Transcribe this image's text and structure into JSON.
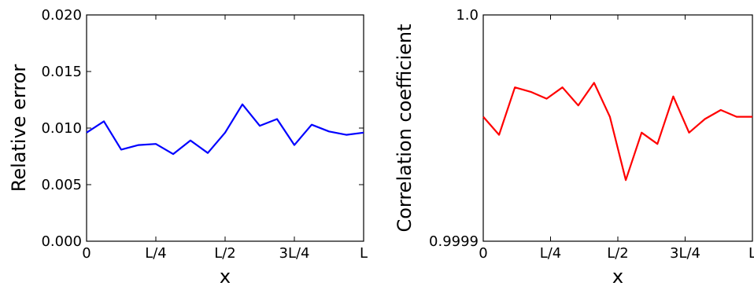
{
  "chart_data": [
    {
      "type": "line",
      "xlabel": "x",
      "ylabel": "Relative error",
      "xlim": [
        0,
        1
      ],
      "ylim": [
        0.0,
        0.02
      ],
      "x_ticks": [
        {
          "value": 0,
          "label": "0"
        },
        {
          "value": 0.25,
          "label": "L/4"
        },
        {
          "value": 0.5,
          "label": "L/2"
        },
        {
          "value": 0.75,
          "label": "3L/4"
        },
        {
          "value": 1,
          "label": "L"
        }
      ],
      "y_ticks": [
        {
          "value": 0.0,
          "label": "0.000"
        },
        {
          "value": 0.005,
          "label": "0.005"
        },
        {
          "value": 0.01,
          "label": "0.010"
        },
        {
          "value": 0.015,
          "label": "0.015"
        },
        {
          "value": 0.02,
          "label": "0.020"
        }
      ],
      "series": [
        {
          "color": "#0000ff",
          "x": [
            0,
            0.0625,
            0.125,
            0.1875,
            0.25,
            0.3125,
            0.375,
            0.4375,
            0.5,
            0.5625,
            0.625,
            0.6875,
            0.75,
            0.8125,
            0.875,
            0.9375,
            1
          ],
          "y": [
            0.0096,
            0.0106,
            0.0081,
            0.0085,
            0.0086,
            0.0077,
            0.0089,
            0.0078,
            0.0096,
            0.0121,
            0.0102,
            0.0108,
            0.0085,
            0.0103,
            0.0097,
            0.0094,
            0.0096
          ]
        }
      ]
    },
    {
      "type": "line",
      "xlabel": "x",
      "ylabel": "Correlation coefficient",
      "xlim": [
        0,
        1
      ],
      "ylim": [
        0.9999,
        1.0
      ],
      "x_ticks": [
        {
          "value": 0,
          "label": "0"
        },
        {
          "value": 0.25,
          "label": "L/4"
        },
        {
          "value": 0.5,
          "label": "L/2"
        },
        {
          "value": 0.75,
          "label": "3L/4"
        },
        {
          "value": 1,
          "label": "L"
        }
      ],
      "y_ticks": [
        {
          "value": 0.9999,
          "label": "0.9999"
        },
        {
          "value": 1.0,
          "label": "1.0"
        }
      ],
      "series": [
        {
          "color": "#ff0000",
          "x": [
            0,
            0.0588,
            0.1176,
            0.1765,
            0.2353,
            0.2941,
            0.3529,
            0.4118,
            0.4706,
            0.5294,
            0.5882,
            0.6471,
            0.7059,
            0.7647,
            0.8235,
            0.8824,
            0.9412,
            1
          ],
          "y": [
            0.999955,
            0.999947,
            0.999968,
            0.999966,
            0.999963,
            0.999968,
            0.99996,
            0.99997,
            0.999955,
            0.999927,
            0.999948,
            0.999943,
            0.999964,
            0.999948,
            0.999954,
            0.999958,
            0.999955,
            0.999955
          ]
        }
      ]
    }
  ]
}
